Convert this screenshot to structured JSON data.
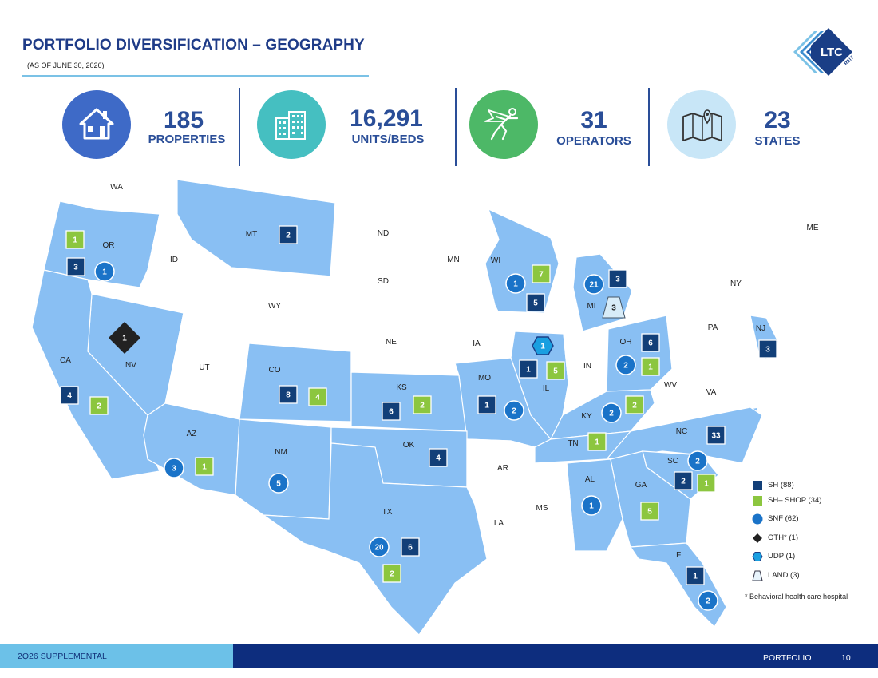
{
  "header": {
    "title": "PORTFOLIO DIVERSIFICATION – GEOGRAPHY",
    "subtitle": "(AS OF JUNE 30, 2026)",
    "logo_text": "LTC",
    "logo_subtext": "REIT"
  },
  "stats": [
    {
      "value": "185",
      "label": "PROPERTIES",
      "icon": "house-icon",
      "color": "#3e6ac7"
    },
    {
      "value": "16,291",
      "label": "UNITS/BEDS",
      "icon": "buildings-icon",
      "color": "#45bfc1"
    },
    {
      "value": "31",
      "label": "OPERATORS",
      "icon": "superhero-icon",
      "color": "#4db867"
    },
    {
      "value": "23",
      "label": "STATES",
      "icon": "map-pin-icon",
      "color": "#c8e6f7"
    }
  ],
  "colors": {
    "portfolio_state": "#89bff3",
    "other_state": "#ffffff",
    "sh": "#123f78",
    "sh_shop": "#8cc63f",
    "snf": "#1a73c8",
    "oth": "#222222",
    "udp": "#1a9fe0",
    "land": "#d8ecf8"
  },
  "state_labels": [
    "WA",
    "OR",
    "ID",
    "MT",
    "ND",
    "MN",
    "WI",
    "MI",
    "ME",
    "NY",
    "SD",
    "WY",
    "NV",
    "CA",
    "UT",
    "CO",
    "NE",
    "IA",
    "IL",
    "IN",
    "OH",
    "PA",
    "NJ",
    "WV",
    "VA",
    "KS",
    "MO",
    "KY",
    "AZ",
    "NM",
    "OK",
    "AR",
    "TN",
    "NC",
    "SC",
    "AL",
    "GA",
    "MS",
    "LA",
    "TX",
    "FL"
  ],
  "markers": [
    {
      "state": "OR",
      "type": "sh_shop",
      "value": "1"
    },
    {
      "state": "OR",
      "type": "sh",
      "value": "3"
    },
    {
      "state": "OR",
      "type": "snf",
      "value": "1"
    },
    {
      "state": "MT",
      "type": "sh",
      "value": "2"
    },
    {
      "state": "NV",
      "type": "oth",
      "value": "1"
    },
    {
      "state": "CA",
      "type": "sh",
      "value": "4"
    },
    {
      "state": "CA",
      "type": "sh_shop",
      "value": "2"
    },
    {
      "state": "AZ",
      "type": "snf",
      "value": "3"
    },
    {
      "state": "AZ",
      "type": "sh_shop",
      "value": "1"
    },
    {
      "state": "NM",
      "type": "snf",
      "value": "5"
    },
    {
      "state": "CO",
      "type": "sh",
      "value": "8"
    },
    {
      "state": "CO",
      "type": "sh_shop",
      "value": "4"
    },
    {
      "state": "KS",
      "type": "sh",
      "value": "6"
    },
    {
      "state": "KS",
      "type": "sh_shop",
      "value": "2"
    },
    {
      "state": "OK",
      "type": "sh",
      "value": "4"
    },
    {
      "state": "TX",
      "type": "snf",
      "value": "20"
    },
    {
      "state": "TX",
      "type": "sh",
      "value": "6"
    },
    {
      "state": "TX",
      "type": "sh_shop",
      "value": "2"
    },
    {
      "state": "WI",
      "type": "sh_shop",
      "value": "7"
    },
    {
      "state": "WI",
      "type": "snf",
      "value": "1"
    },
    {
      "state": "WI",
      "type": "sh",
      "value": "5"
    },
    {
      "state": "MI",
      "type": "snf",
      "value": "21"
    },
    {
      "state": "MI",
      "type": "sh",
      "value": "3"
    },
    {
      "state": "MI",
      "type": "land",
      "value": "3"
    },
    {
      "state": "IL",
      "type": "udp",
      "value": "1"
    },
    {
      "state": "IL",
      "type": "sh",
      "value": "1"
    },
    {
      "state": "IL",
      "type": "sh_shop",
      "value": "5"
    },
    {
      "state": "MO",
      "type": "sh",
      "value": "1"
    },
    {
      "state": "MO",
      "type": "snf",
      "value": "2"
    },
    {
      "state": "OH",
      "type": "sh",
      "value": "6"
    },
    {
      "state": "OH",
      "type": "snf",
      "value": "2"
    },
    {
      "state": "OH",
      "type": "sh_shop",
      "value": "1"
    },
    {
      "state": "KY",
      "type": "snf",
      "value": "2"
    },
    {
      "state": "KY",
      "type": "sh_shop",
      "value": "2"
    },
    {
      "state": "NJ",
      "type": "sh",
      "value": "3"
    },
    {
      "state": "TN",
      "type": "sh_shop",
      "value": "1"
    },
    {
      "state": "NC",
      "type": "sh",
      "value": "33"
    },
    {
      "state": "SC",
      "type": "snf",
      "value": "2"
    },
    {
      "state": "SC",
      "type": "sh",
      "value": "2"
    },
    {
      "state": "SC",
      "type": "sh_shop",
      "value": "1"
    },
    {
      "state": "AL",
      "type": "snf",
      "value": "1"
    },
    {
      "state": "GA",
      "type": "sh_shop",
      "value": "5"
    },
    {
      "state": "FL",
      "type": "sh",
      "value": "1"
    },
    {
      "state": "FL",
      "type": "snf",
      "value": "2"
    }
  ],
  "legend": [
    {
      "type": "sh",
      "icon": "square-icon",
      "label": "SH (88)"
    },
    {
      "type": "sh_shop",
      "icon": "square-icon",
      "label": "SH– SHOP (34)"
    },
    {
      "type": "snf",
      "icon": "circle-icon",
      "label": "SNF (62)"
    },
    {
      "type": "oth",
      "icon": "diamond-icon",
      "label": "OTH* (1)"
    },
    {
      "type": "udp",
      "icon": "hexagon-icon",
      "label": "UDP (1)"
    },
    {
      "type": "land",
      "icon": "trapezoid-icon",
      "label": "LAND (3)"
    }
  ],
  "footnote": "* Behavioral health care hospital",
  "footer": {
    "left": "2Q26 SUPPLEMENTAL",
    "section": "PORTFOLIO",
    "page": "10"
  }
}
